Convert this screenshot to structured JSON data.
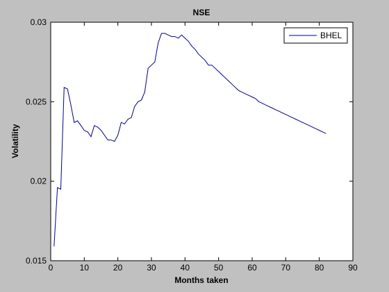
{
  "chart_data": {
    "type": "line",
    "title": "NSE",
    "xlabel": "Months taken",
    "ylabel": "Volatility",
    "xlim": [
      0,
      90
    ],
    "ylim": [
      0.015,
      0.03
    ],
    "xticks": [
      0,
      10,
      20,
      30,
      40,
      50,
      60,
      70,
      80,
      90
    ],
    "yticks": [
      0.015,
      0.02,
      0.025,
      0.03
    ],
    "xtick_labels": [
      "0",
      "10",
      "20",
      "30",
      "40",
      "50",
      "60",
      "70",
      "80",
      "90"
    ],
    "ytick_labels": [
      "0.015",
      "0.02",
      "0.025",
      "0.03"
    ],
    "grid": false,
    "legend_position": "top-right",
    "series": [
      {
        "name": "BHEL",
        "color": "#00008b",
        "x": [
          1,
          2,
          3,
          4,
          5,
          6,
          7,
          8,
          9,
          10,
          11,
          12,
          13,
          14,
          15,
          16,
          17,
          18,
          19,
          20,
          21,
          22,
          23,
          24,
          25,
          26,
          27,
          28,
          29,
          30,
          31,
          32,
          33,
          34,
          35,
          36,
          37,
          38,
          39,
          40,
          41,
          42,
          43,
          44,
          45,
          46,
          47,
          48,
          49,
          50,
          51,
          52,
          53,
          54,
          55,
          56,
          57,
          58,
          59,
          60,
          61,
          62,
          63,
          64,
          65,
          66,
          67,
          68,
          69,
          70,
          71,
          72,
          73,
          74,
          75,
          76,
          77,
          78,
          79,
          80,
          81,
          82
        ],
        "y": [
          0.0159,
          0.0196,
          0.0195,
          0.0259,
          0.0258,
          0.0248,
          0.0237,
          0.0238,
          0.0235,
          0.0232,
          0.0231,
          0.0228,
          0.0235,
          0.0234,
          0.0232,
          0.0229,
          0.0226,
          0.0226,
          0.0225,
          0.0229,
          0.0237,
          0.0236,
          0.0239,
          0.024,
          0.0247,
          0.025,
          0.0251,
          0.0256,
          0.0271,
          0.0273,
          0.0275,
          0.0287,
          0.0293,
          0.0293,
          0.0292,
          0.0291,
          0.0291,
          0.029,
          0.0292,
          0.029,
          0.0288,
          0.0285,
          0.0283,
          0.028,
          0.0278,
          0.0276,
          0.0273,
          0.0273,
          0.0271,
          0.0269,
          0.0267,
          0.0265,
          0.0263,
          0.0261,
          0.0259,
          0.0257,
          0.0256,
          0.0255,
          0.0254,
          0.0253,
          0.0252,
          0.025,
          0.0249,
          0.0248,
          0.0247,
          0.0246,
          0.0245,
          0.0244,
          0.0243,
          0.0242,
          0.0241,
          0.024,
          0.0239,
          0.0238,
          0.0237,
          0.0236,
          0.0235,
          0.0234,
          0.0233,
          0.0232,
          0.0231,
          0.023
        ]
      }
    ]
  }
}
